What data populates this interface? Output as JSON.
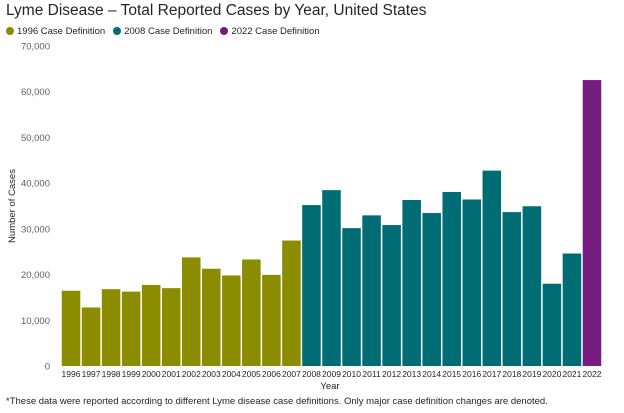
{
  "header": {
    "title": "Lyme Disease – Total Reported Cases by Year, United States"
  },
  "legend": {
    "items": [
      {
        "label": "1996 Case Definition",
        "color": "#8c8c00"
      },
      {
        "label": "2008 Case Definition",
        "color": "#006d75"
      },
      {
        "label": "2022 Case Definition",
        "color": "#771d7f"
      }
    ]
  },
  "footnote": "*These data were reported according to different Lyme disease case definitions. Only major case definition changes are denoted.",
  "chart_data": {
    "type": "bar",
    "title": "Lyme Disease – Total Reported Cases by Year, United States",
    "xlabel": "Year",
    "ylabel": "Number of Cases",
    "ylim": [
      0,
      70000
    ],
    "yticks": [
      "0",
      "10,000",
      "20,000",
      "30,000",
      "40,000",
      "50,000",
      "60,000",
      "70,000"
    ],
    "grid": false,
    "legend_position": "top-left",
    "categories": [
      "1996",
      "1997",
      "1998",
      "1999",
      "2000",
      "2001",
      "2002",
      "2003",
      "2004",
      "2005",
      "2006",
      "2007",
      "2008",
      "2009",
      "2010",
      "2011",
      "2012",
      "2013",
      "2014",
      "2015",
      "2016",
      "2017",
      "2018",
      "2019",
      "2020",
      "2021",
      "2022"
    ],
    "values": [
      16461,
      12801,
      16801,
      16273,
      17730,
      17029,
      23763,
      21273,
      19804,
      23305,
      19931,
      27444,
      35198,
      38468,
      30158,
      32952,
      30831,
      36307,
      33461,
      38069,
      36429,
      42743,
      33666,
      34945,
      18000,
      24610,
      62551
    ],
    "series_index": [
      0,
      0,
      0,
      0,
      0,
      0,
      0,
      0,
      0,
      0,
      0,
      0,
      1,
      1,
      1,
      1,
      1,
      1,
      1,
      1,
      1,
      1,
      1,
      1,
      1,
      1,
      2
    ],
    "series": [
      {
        "name": "1996 Case Definition",
        "color": "#8c8c00"
      },
      {
        "name": "2008 Case Definition",
        "color": "#006d75"
      },
      {
        "name": "2022 Case Definition",
        "color": "#771d7f"
      }
    ]
  }
}
